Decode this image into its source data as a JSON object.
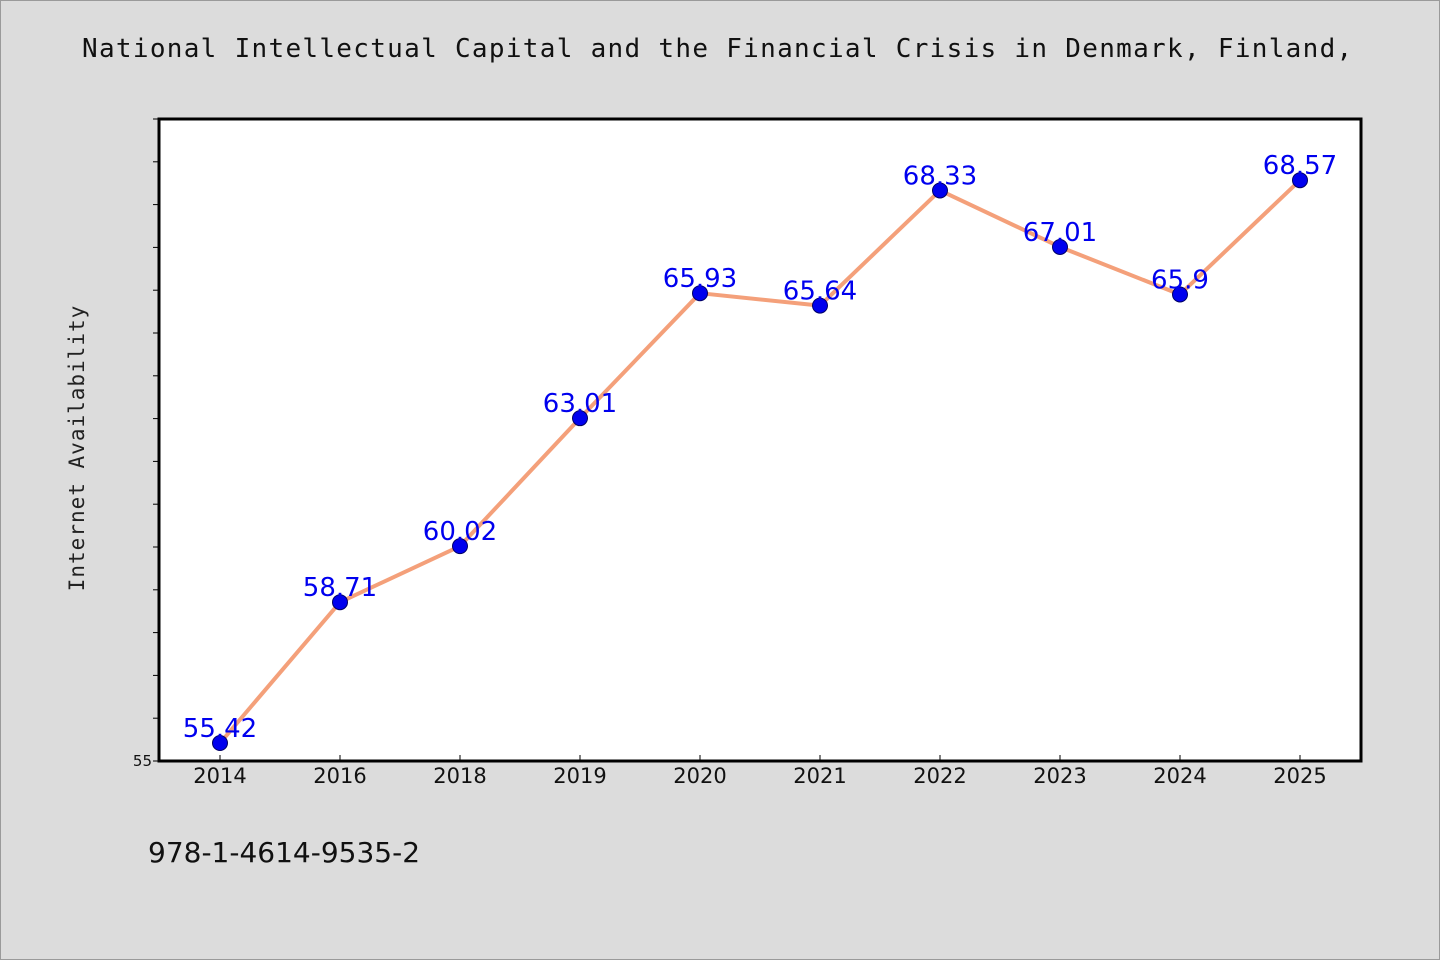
{
  "chart_data": {
    "type": "line",
    "title": "National Intellectual Capital and the Financial Crisis in Denmark, Finland, Icel",
    "xlabel": "",
    "ylabel": "Internet Availability",
    "categories": [
      "2014",
      "2016",
      "2018",
      "2019",
      "2020",
      "2021",
      "2022",
      "2023",
      "2024",
      "2025"
    ],
    "series": [
      {
        "values": [
          55.42,
          58.71,
          60.02,
          63.01,
          65.93,
          65.64,
          68.33,
          67.01,
          65.9,
          68.57
        ]
      }
    ],
    "data_labels": [
      "55.42",
      "58.71",
      "60.02",
      "63.01",
      "65.93",
      "65.64",
      "68.33",
      "67.01",
      "65.9",
      "68.57"
    ],
    "ylim": [
      55,
      70
    ],
    "y_tick_labels": [
      "55"
    ],
    "grid": false,
    "legend": "none",
    "colors": {
      "line": "#f4a07a",
      "marker": "#0000ee",
      "marker_edge": "#000066",
      "data_label": "#0000ee",
      "background": "#dcdcdc",
      "plot_background": "#ffffff"
    }
  },
  "footer": {
    "isbn": "978-1-4614-9535-2"
  }
}
